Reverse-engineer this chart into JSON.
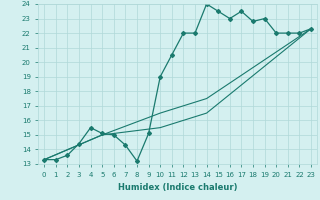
{
  "xlabel": "Humidex (Indice chaleur)",
  "bg_color": "#d4f0f0",
  "line_color": "#1a7a6e",
  "grid_color": "#b0d8d8",
  "xlim": [
    -0.5,
    23.5
  ],
  "ylim": [
    13,
    24
  ],
  "xticks": [
    0,
    1,
    2,
    3,
    4,
    5,
    6,
    7,
    8,
    9,
    10,
    11,
    12,
    13,
    14,
    15,
    16,
    17,
    18,
    19,
    20,
    21,
    22,
    23
  ],
  "yticks": [
    13,
    14,
    15,
    16,
    17,
    18,
    19,
    20,
    21,
    22,
    23,
    24
  ],
  "series": [
    {
      "x": [
        0,
        1,
        2,
        3,
        4,
        5,
        6,
        7,
        8,
        9,
        10,
        11,
        12,
        13,
        14,
        15,
        16,
        17,
        18,
        19,
        20,
        21,
        22,
        23
      ],
      "y": [
        13.3,
        13.3,
        13.6,
        14.4,
        15.5,
        15.1,
        15.0,
        14.3,
        13.2,
        15.1,
        19.0,
        20.5,
        22.0,
        22.0,
        24.0,
        23.5,
        23.0,
        23.5,
        22.8,
        23.0,
        22.0,
        22.0,
        22.0,
        22.3
      ],
      "has_markers": true
    },
    {
      "x": [
        0,
        5,
        10,
        14,
        23
      ],
      "y": [
        13.3,
        15.0,
        16.5,
        17.5,
        22.3
      ],
      "has_markers": false
    },
    {
      "x": [
        0,
        5,
        10,
        14,
        23
      ],
      "y": [
        13.3,
        15.0,
        15.5,
        16.5,
        22.3
      ],
      "has_markers": false
    }
  ]
}
